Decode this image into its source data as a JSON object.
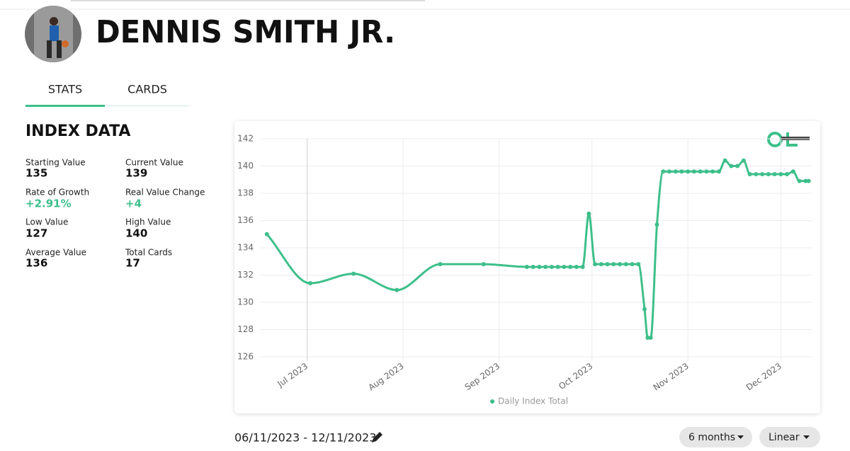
{
  "header": {
    "player_name": "DENNIS SMITH JR."
  },
  "tabs": [
    "STATS",
    "CARDS"
  ],
  "index_data": {
    "title": "INDEX DATA",
    "stats": [
      {
        "label": "Starting Value",
        "value": 135
      },
      {
        "label": "Current Value",
        "value": 139
      },
      {
        "label": "Rate of Growth",
        "value": "+2.91%"
      },
      {
        "label": "Real Value Change",
        "value": "+4"
      },
      {
        "label": "Low Value",
        "value": 127
      },
      {
        "label": "High Value",
        "value": 140
      },
      {
        "label": "Average Value",
        "value": 136
      },
      {
        "label": "Total Cards",
        "value": 17
      }
    ]
  },
  "chart_data": {
    "type": "line",
    "x": [
      "2023-06-18",
      "2023-07-02",
      "2023-07-16",
      "2023-07-30",
      "2023-08-13",
      "2023-08-27",
      "2023-09-10",
      "2023-09-12",
      "2023-09-14",
      "2023-09-16",
      "2023-09-18",
      "2023-09-20",
      "2023-09-22",
      "2023-09-24",
      "2023-09-26",
      "2023-09-28",
      "2023-09-30",
      "2023-10-02",
      "2023-10-04",
      "2023-10-06",
      "2023-10-08",
      "2023-10-10",
      "2023-10-12",
      "2023-10-14",
      "2023-10-16",
      "2023-10-18",
      "2023-10-19",
      "2023-10-20",
      "2023-10-22",
      "2023-10-24",
      "2023-10-26",
      "2023-10-28",
      "2023-10-30",
      "2023-11-01",
      "2023-11-03",
      "2023-11-05",
      "2023-11-07",
      "2023-11-09",
      "2023-11-11",
      "2023-11-13",
      "2023-11-15",
      "2023-11-17",
      "2023-11-19",
      "2023-11-21",
      "2023-11-23",
      "2023-11-25",
      "2023-11-27",
      "2023-11-29",
      "2023-12-01",
      "2023-12-03",
      "2023-12-05",
      "2023-12-07",
      "2023-12-09",
      "2023-12-10"
    ],
    "series": [
      {
        "name": "Daily Index Total",
        "color": "#3dbf8a",
        "values": [
          135.0,
          131.4,
          132.1,
          130.9,
          132.8,
          132.8,
          132.6,
          132.6,
          132.6,
          132.6,
          132.6,
          132.6,
          132.6,
          132.6,
          132.6,
          132.6,
          136.5,
          132.8,
          132.8,
          132.8,
          132.8,
          132.8,
          132.8,
          132.8,
          132.8,
          129.5,
          127.4,
          127.4,
          135.7,
          139.6,
          139.6,
          139.6,
          139.6,
          139.6,
          139.6,
          139.6,
          139.6,
          139.6,
          139.6,
          140.4,
          140.0,
          140.0,
          140.4,
          139.4,
          139.4,
          139.4,
          139.4,
          139.4,
          139.4,
          139.4,
          139.6,
          138.9,
          138.9,
          138.9
        ]
      }
    ],
    "xlim": [
      "2023-06-16",
      "2023-12-11"
    ],
    "xticks": [
      {
        "value": "2023-07-01",
        "label": "Jul 2023"
      },
      {
        "value": "2023-08-01",
        "label": "Aug 2023"
      },
      {
        "value": "2023-09-01",
        "label": "Sep 2023"
      },
      {
        "value": "2023-10-01",
        "label": "Oct 2023"
      },
      {
        "value": "2023-11-01",
        "label": "Nov 2023"
      },
      {
        "value": "2023-12-01",
        "label": "Dec 2023"
      }
    ],
    "ylim": [
      126,
      142
    ],
    "yticks": [
      126,
      128,
      130,
      132,
      134,
      136,
      138,
      140,
      142
    ],
    "grid": true,
    "legend": "bottom"
  },
  "controls": {
    "date_range": "06/11/2023 - 12/11/2023",
    "period": "6 months",
    "scale": "Linear"
  }
}
